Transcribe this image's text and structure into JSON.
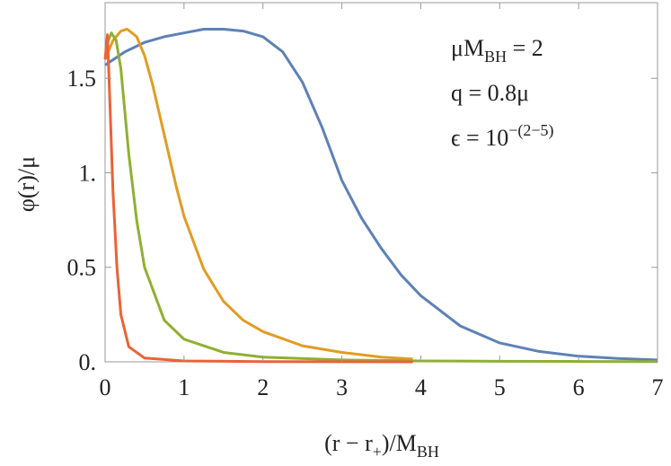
{
  "chart_data": {
    "type": "line",
    "x_label": [
      "(r − r",
      {
        "sub": "+"
      },
      ")/M",
      {
        "sub": "BH"
      }
    ],
    "y_label": [
      "φ(r)/μ"
    ],
    "annotations": [
      [
        "μM",
        {
          "sub": "BH"
        },
        " = 2"
      ],
      [
        "q = 0.8μ"
      ],
      [
        "ϵ = 10",
        {
          "sup": "−(2−5)"
        }
      ]
    ],
    "xlim": [
      0,
      7
    ],
    "ylim": [
      0,
      1.9
    ],
    "xticks": [
      0,
      1,
      2,
      3,
      4,
      5,
      6,
      7
    ],
    "yticks": [
      {
        "value": 0,
        "label": "0."
      },
      0.5,
      {
        "value": 1,
        "label": "1."
      },
      1.5
    ],
    "series": [
      {
        "color": "#5e81b5",
        "x": [
          0,
          0.25,
          0.5,
          0.75,
          1,
          1.25,
          1.5,
          1.75,
          2,
          2.25,
          2.5,
          2.75,
          3,
          3.25,
          3.5,
          3.75,
          4,
          4.5,
          5,
          5.5,
          6,
          6.5,
          7
        ],
        "values": [
          1.57,
          1.64,
          1.69,
          1.72,
          1.74,
          1.76,
          1.76,
          1.75,
          1.72,
          1.64,
          1.48,
          1.24,
          0.96,
          0.76,
          0.6,
          0.46,
          0.35,
          0.19,
          0.1,
          0.055,
          0.03,
          0.018,
          0.01
        ]
      },
      {
        "color": "#e19c24",
        "x": [
          0,
          0.1,
          0.2,
          0.28,
          0.4,
          0.5,
          0.6,
          0.75,
          0.9,
          1,
          1.25,
          1.5,
          1.75,
          2,
          2.5,
          3,
          3.5,
          3.9
        ],
        "values": [
          1.6,
          1.7,
          1.75,
          1.76,
          1.72,
          1.62,
          1.47,
          1.2,
          0.93,
          0.77,
          0.49,
          0.32,
          0.22,
          0.16,
          0.085,
          0.05,
          0.025,
          0.015
        ]
      },
      {
        "color": "#8fb032",
        "x": [
          0,
          0.04,
          0.08,
          0.14,
          0.2,
          0.3,
          0.4,
          0.5,
          0.75,
          1,
          1.5,
          2,
          3,
          4,
          5,
          6,
          7
        ],
        "values": [
          1.6,
          1.7,
          1.74,
          1.7,
          1.55,
          1.1,
          0.75,
          0.5,
          0.22,
          0.12,
          0.05,
          0.025,
          0.01,
          0.005,
          0.003,
          0.002,
          0.001
        ]
      },
      {
        "color": "#eb6235",
        "x": [
          0,
          0.03,
          0.05,
          0.1,
          0.15,
          0.2,
          0.3,
          0.5,
          1,
          2,
          3,
          3.9
        ],
        "values": [
          1.6,
          1.73,
          1.5,
          0.9,
          0.5,
          0.25,
          0.08,
          0.02,
          0.005,
          0.001,
          0.0005,
          0.0003
        ]
      }
    ]
  }
}
